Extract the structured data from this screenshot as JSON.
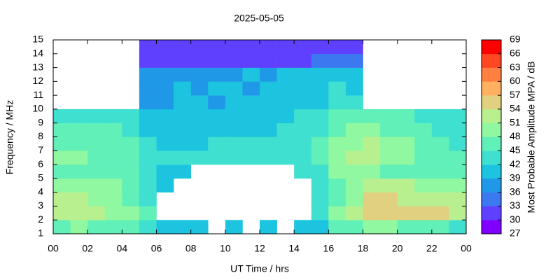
{
  "chart_data": {
    "type": "heatmap",
    "title": "2025-05-05",
    "x_label": "UT Time / hrs",
    "y_label": "Frequency / MHz",
    "colorbar_label": "Most Probable Amplitude MPA / dB",
    "x_bins": [
      0,
      1,
      2,
      3,
      4,
      5,
      6,
      7,
      8,
      9,
      10,
      11,
      12,
      13,
      14,
      15,
      16,
      17,
      18,
      19,
      20,
      21,
      22,
      23,
      24
    ],
    "y_bins": [
      1,
      2,
      3,
      4,
      5,
      6,
      7,
      8,
      9,
      10,
      11,
      12,
      13,
      14,
      15
    ],
    "z": [
      [
        47,
        48,
        47,
        46,
        45,
        43,
        40,
        40,
        39,
        null,
        39,
        null,
        39,
        null,
        39,
        41,
        45,
        47,
        49,
        48,
        47,
        46,
        45,
        44
      ],
      [
        53,
        52,
        51,
        49,
        48,
        45,
        null,
        null,
        null,
        null,
        null,
        null,
        null,
        null,
        null,
        44,
        48,
        51,
        56,
        55,
        55,
        54,
        54,
        53
      ],
      [
        52,
        51,
        50,
        48,
        47,
        44,
        null,
        null,
        null,
        null,
        null,
        null,
        null,
        null,
        null,
        43,
        47,
        50,
        55,
        54,
        53,
        52,
        52,
        51
      ],
      [
        49,
        50,
        49,
        48,
        47,
        44,
        41,
        null,
        null,
        null,
        null,
        null,
        null,
        null,
        null,
        43,
        46,
        48,
        52,
        53,
        51,
        50,
        49,
        48
      ],
      [
        47,
        47,
        46,
        46,
        45,
        43,
        41,
        40,
        null,
        null,
        null,
        null,
        null,
        null,
        42,
        44,
        48,
        49,
        48,
        47,
        46,
        46,
        45,
        45
      ],
      [
        48,
        48,
        47,
        47,
        46,
        43,
        42,
        42,
        42,
        42,
        42,
        42,
        42,
        43,
        44,
        46,
        50,
        52,
        51,
        50,
        48,
        47,
        46,
        45
      ],
      [
        46,
        47,
        47,
        46,
        45,
        42,
        41,
        41,
        41,
        42,
        42,
        42,
        42,
        42,
        43,
        45,
        49,
        50,
        52,
        50,
        48,
        47,
        45,
        44
      ],
      [
        45,
        46,
        46,
        45,
        44,
        41,
        40,
        40,
        40,
        41,
        41,
        41,
        41,
        42,
        42,
        44,
        46,
        48,
        48,
        47,
        46,
        45,
        44,
        43
      ],
      [
        42,
        43,
        44,
        44,
        43,
        40,
        39,
        39,
        40,
        40,
        40,
        41,
        41,
        41,
        42,
        43,
        45,
        46,
        47,
        46,
        45,
        44,
        43,
        42
      ],
      [
        null,
        null,
        null,
        null,
        null,
        38,
        38,
        39,
        39,
        38,
        39,
        39,
        40,
        40,
        40,
        41,
        42,
        42,
        null,
        null,
        null,
        null,
        null,
        null
      ],
      [
        null,
        null,
        null,
        null,
        null,
        37,
        38,
        39,
        38,
        39,
        39,
        38,
        39,
        40,
        40,
        41,
        42,
        41,
        null,
        null,
        null,
        null,
        null,
        null
      ],
      [
        null,
        null,
        null,
        null,
        null,
        36,
        38,
        38,
        37,
        38,
        38,
        39,
        38,
        39,
        40,
        40,
        41,
        40,
        null,
        null,
        null,
        null,
        null,
        null
      ],
      [
        null,
        null,
        null,
        null,
        null,
        31,
        31,
        32,
        32,
        31,
        31,
        32,
        32,
        31,
        32,
        33,
        33,
        33,
        null,
        null,
        null,
        null,
        null,
        null
      ],
      [
        null,
        null,
        null,
        null,
        null,
        30,
        30,
        30,
        30,
        30,
        30,
        30,
        30,
        30,
        30,
        30,
        30,
        30,
        null,
        null,
        null,
        null,
        null,
        null
      ]
    ],
    "xlim": [
      0,
      24
    ],
    "xticks": [
      {
        "value": 0,
        "label": "00"
      },
      {
        "value": 2,
        "label": "02"
      },
      {
        "value": 4,
        "label": "04"
      },
      {
        "value": 6,
        "label": "06"
      },
      {
        "value": 8,
        "label": "08"
      },
      10,
      12,
      14,
      16,
      18,
      20,
      22,
      {
        "value": 24,
        "label": "00"
      }
    ],
    "ylim": [
      1,
      15
    ],
    "yticks": [
      1,
      2,
      3,
      4,
      5,
      6,
      7,
      8,
      9,
      10,
      11,
      12,
      13,
      14,
      15
    ],
    "zlim": [
      27,
      69
    ],
    "zticks": [
      27,
      30,
      33,
      36,
      39,
      42,
      45,
      48,
      51,
      54,
      57,
      60,
      63,
      66,
      69
    ],
    "colors": [
      "#8000ff",
      "#6040ff",
      "#3c78f0",
      "#2098e8",
      "#1cc4e0",
      "#40e0d0",
      "#60f0b8",
      "#90f8a0",
      "#b8f090",
      "#e0d080",
      "#ffb060",
      "#ff8040",
      "#ff4822",
      "#ff0000"
    ]
  }
}
